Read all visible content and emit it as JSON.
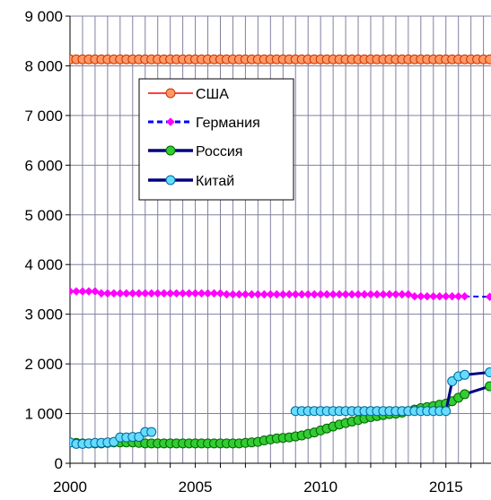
{
  "chart_data": {
    "type": "line",
    "xlabel": "",
    "ylabel": "",
    "xlim": [
      2000,
      2016.8
    ],
    "ylim": [
      0,
      9000
    ],
    "x_ticks": [
      2000,
      2005,
      2010,
      2015
    ],
    "x_tick_labels": [
      "2000",
      "2005",
      "2010",
      "2015"
    ],
    "y_ticks": [
      0,
      1000,
      2000,
      3000,
      4000,
      5000,
      6000,
      7000,
      8000,
      9000
    ],
    "y_tick_labels": [
      "0",
      "1 000",
      "2 000",
      "3 000",
      "4 000",
      "5 000",
      "6 000",
      "7 000",
      "8 000",
      "9 000"
    ],
    "grid": "vertical, every 0.5 year; horizontal at each 1000",
    "legend_placement": "upper-middle",
    "series": [
      {
        "name": "США",
        "line_color": "#ff0000",
        "marker_fill": "#ff9966",
        "marker_stroke": "#cc3300",
        "marker": "circle",
        "x": [
          2000.0,
          2000.25,
          2000.5,
          2000.75,
          2001.0,
          2001.25,
          2001.5,
          2001.75,
          2002.0,
          2002.25,
          2002.5,
          2002.75,
          2003.0,
          2003.25,
          2003.5,
          2003.75,
          2004.0,
          2004.25,
          2004.5,
          2004.75,
          2005.0,
          2005.25,
          2005.5,
          2005.75,
          2006.0,
          2006.25,
          2006.5,
          2006.75,
          2007.0,
          2007.25,
          2007.5,
          2007.75,
          2008.0,
          2008.25,
          2008.5,
          2008.75,
          2009.0,
          2009.25,
          2009.5,
          2009.75,
          2010.0,
          2010.25,
          2010.5,
          2010.75,
          2011.0,
          2011.25,
          2011.5,
          2011.75,
          2012.0,
          2012.25,
          2012.5,
          2012.75,
          2013.0,
          2013.25,
          2013.5,
          2013.75,
          2014.0,
          2014.25,
          2014.5,
          2014.75,
          2015.0,
          2015.25,
          2015.5,
          2015.75,
          2016.0,
          2016.25,
          2016.5,
          2016.75
        ],
        "values": [
          8130,
          8130,
          8130,
          8130,
          8130,
          8130,
          8130,
          8130,
          8130,
          8130,
          8130,
          8130,
          8130,
          8130,
          8130,
          8130,
          8130,
          8130,
          8130,
          8130,
          8130,
          8130,
          8130,
          8130,
          8130,
          8130,
          8130,
          8130,
          8130,
          8130,
          8130,
          8130,
          8130,
          8130,
          8130,
          8130,
          8130,
          8130,
          8130,
          8130,
          8130,
          8130,
          8130,
          8130,
          8130,
          8130,
          8130,
          8130,
          8130,
          8130,
          8130,
          8130,
          8130,
          8130,
          8130,
          8130,
          8130,
          8130,
          8130,
          8130,
          8130,
          8130,
          8130,
          8130,
          8130,
          8130,
          8130,
          8130
        ]
      },
      {
        "name": "Германия",
        "line_color": "#0000ff",
        "marker_fill": "#ff00ff",
        "marker_stroke": "#ff00ff",
        "marker": "diamond",
        "dashed": true,
        "x": [
          2000.0,
          2000.25,
          2000.5,
          2000.75,
          2001.0,
          2001.25,
          2001.5,
          2001.75,
          2002.0,
          2002.25,
          2002.5,
          2002.75,
          2003.0,
          2003.25,
          2003.5,
          2003.75,
          2004.0,
          2004.25,
          2004.5,
          2004.75,
          2005.0,
          2005.25,
          2005.5,
          2005.75,
          2006.0,
          2006.25,
          2006.5,
          2006.75,
          2007.0,
          2007.25,
          2007.5,
          2007.75,
          2008.0,
          2008.25,
          2008.5,
          2008.75,
          2009.0,
          2009.25,
          2009.5,
          2009.75,
          2010.0,
          2010.25,
          2010.5,
          2010.75,
          2011.0,
          2011.25,
          2011.5,
          2011.75,
          2012.0,
          2012.25,
          2012.5,
          2012.75,
          2013.0,
          2013.25,
          2013.5,
          2013.75,
          2014.0,
          2014.25,
          2014.5,
          2014.75,
          2015.0,
          2015.25,
          2015.5,
          2015.75,
          2016.75
        ],
        "values": [
          3460,
          3460,
          3460,
          3460,
          3460,
          3420,
          3420,
          3420,
          3420,
          3420,
          3420,
          3420,
          3420,
          3420,
          3420,
          3420,
          3420,
          3420,
          3420,
          3420,
          3420,
          3420,
          3420,
          3420,
          3420,
          3400,
          3400,
          3400,
          3400,
          3400,
          3400,
          3400,
          3400,
          3400,
          3400,
          3400,
          3400,
          3400,
          3400,
          3400,
          3400,
          3400,
          3400,
          3400,
          3400,
          3400,
          3400,
          3400,
          3400,
          3400,
          3400,
          3400,
          3400,
          3400,
          3400,
          3360,
          3360,
          3360,
          3360,
          3360,
          3360,
          3360,
          3360,
          3360,
          3350
        ]
      },
      {
        "name": "Россия",
        "line_color": "#000080",
        "marker_fill": "#33cc33",
        "marker_stroke": "#006600",
        "marker": "circle",
        "x": [
          2000.0,
          2000.25,
          2000.5,
          2000.75,
          2001.0,
          2001.25,
          2001.5,
          2001.75,
          2002.0,
          2002.25,
          2002.5,
          2002.75,
          2003.0,
          2003.25,
          2003.5,
          2003.75,
          2004.0,
          2004.25,
          2004.5,
          2004.75,
          2005.0,
          2005.25,
          2005.5,
          2005.75,
          2006.0,
          2006.25,
          2006.5,
          2006.75,
          2007.0,
          2007.25,
          2007.5,
          2007.75,
          2008.0,
          2008.25,
          2008.5,
          2008.75,
          2009.0,
          2009.25,
          2009.5,
          2009.75,
          2010.0,
          2010.25,
          2010.5,
          2010.75,
          2011.0,
          2011.25,
          2011.5,
          2011.75,
          2012.0,
          2012.25,
          2012.5,
          2012.75,
          2013.0,
          2013.25,
          2013.5,
          2013.75,
          2014.0,
          2014.25,
          2014.5,
          2014.75,
          2015.0,
          2015.25,
          2015.5,
          2015.75,
          2016.75
        ],
        "values": [
          420,
          410,
          400,
          400,
          400,
          400,
          410,
          420,
          420,
          420,
          420,
          410,
          400,
          400,
          400,
          400,
          400,
          400,
          400,
          400,
          400,
          400,
          400,
          400,
          400,
          400,
          400,
          400,
          410,
          420,
          430,
          460,
          480,
          500,
          510,
          520,
          540,
          560,
          590,
          620,
          660,
          700,
          740,
          780,
          810,
          840,
          870,
          900,
          930,
          950,
          970,
          990,
          1000,
          1020,
          1050,
          1080,
          1110,
          1130,
          1150,
          1180,
          1200,
          1250,
          1320,
          1390,
          1550
        ]
      },
      {
        "name": "Китай",
        "line_color": "#000080",
        "marker_fill": "#66ddff",
        "marker_stroke": "#006699",
        "marker": "circle",
        "x": [
          2000.0,
          2000.25,
          2000.5,
          2000.75,
          2001.0,
          2001.25,
          2001.5,
          2001.75,
          2002.0,
          2002.25,
          2002.5,
          2002.75,
          2003.0,
          2003.25,
          2009.0,
          2009.25,
          2009.5,
          2009.75,
          2010.0,
          2010.25,
          2010.5,
          2010.75,
          2011.0,
          2011.25,
          2011.5,
          2011.75,
          2012.0,
          2012.25,
          2012.5,
          2012.75,
          2013.0,
          2013.25,
          2013.5,
          2013.75,
          2014.0,
          2014.25,
          2014.5,
          2014.75,
          2015.0,
          2015.25,
          2015.5,
          2015.75,
          2016.75
        ],
        "values": [
          420,
          390,
          390,
          400,
          410,
          410,
          420,
          430,
          520,
          520,
          530,
          530,
          630,
          630,
          1050,
          1050,
          1050,
          1050,
          1050,
          1050,
          1050,
          1050,
          1050,
          1050,
          1050,
          1050,
          1050,
          1050,
          1050,
          1050,
          1050,
          1050,
          1050,
          1050,
          1050,
          1050,
          1050,
          1050,
          1050,
          1650,
          1750,
          1780,
          1830
        ]
      }
    ]
  }
}
